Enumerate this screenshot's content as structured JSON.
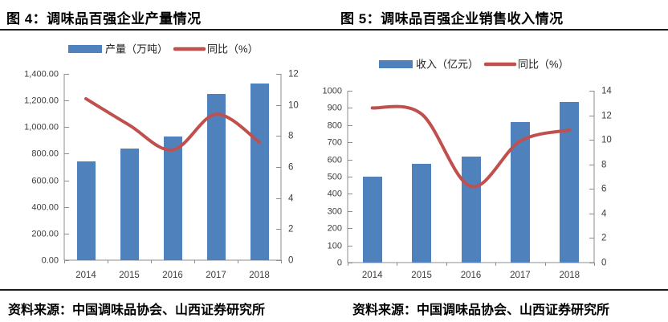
{
  "chart_data": [
    {
      "type": "bar",
      "title": "图 4：调味品百强企业产量情况",
      "categories": [
        "2014",
        "2015",
        "2016",
        "2017",
        "2018"
      ],
      "series": [
        {
          "name": "产量（万吨）",
          "kind": "bar",
          "axis": "left",
          "values": [
            740,
            840,
            930,
            1250,
            1330
          ]
        },
        {
          "name": "同比（%）",
          "kind": "line",
          "axis": "right",
          "values": [
            10.4,
            8.7,
            7.1,
            9.4,
            7.6
          ]
        }
      ],
      "y_left": {
        "min": 0,
        "max": 1400,
        "step": 200,
        "format": "thousands_2dp"
      },
      "y_right": {
        "min": 0,
        "max": 12,
        "step": 2,
        "format": "int"
      },
      "legend_position": "top",
      "gridlines": false,
      "smooth_line": true
    },
    {
      "type": "bar",
      "title": "图 5：调味品百强企业销售收入情况",
      "categories": [
        "2014",
        "2015",
        "2016",
        "2017",
        "2018"
      ],
      "series": [
        {
          "name": "收入（亿元）",
          "kind": "bar",
          "axis": "left",
          "values": [
            500,
            575,
            615,
            820,
            935
          ]
        },
        {
          "name": "同比（%）",
          "kind": "line",
          "axis": "right",
          "values": [
            12.6,
            12.1,
            6.2,
            9.9,
            10.8
          ]
        }
      ],
      "y_left": {
        "min": 0,
        "max": 1000,
        "step": 100,
        "format": "int"
      },
      "y_right": {
        "min": 0,
        "max": 14,
        "step": 2,
        "format": "int"
      },
      "legend_position": "top",
      "gridlines": false,
      "smooth_line": true
    }
  ],
  "sources": [
    "资料来源：中国调味品协会、山西证券研究所",
    "资料来源：中国调味品协会、山西证券研究所"
  ],
  "colors": {
    "bar": "#4F81BD",
    "line": "#C0504D",
    "axis": "#8C8C8C",
    "tick_label": "#3d3d3d",
    "divider": "#1a1a1a"
  }
}
